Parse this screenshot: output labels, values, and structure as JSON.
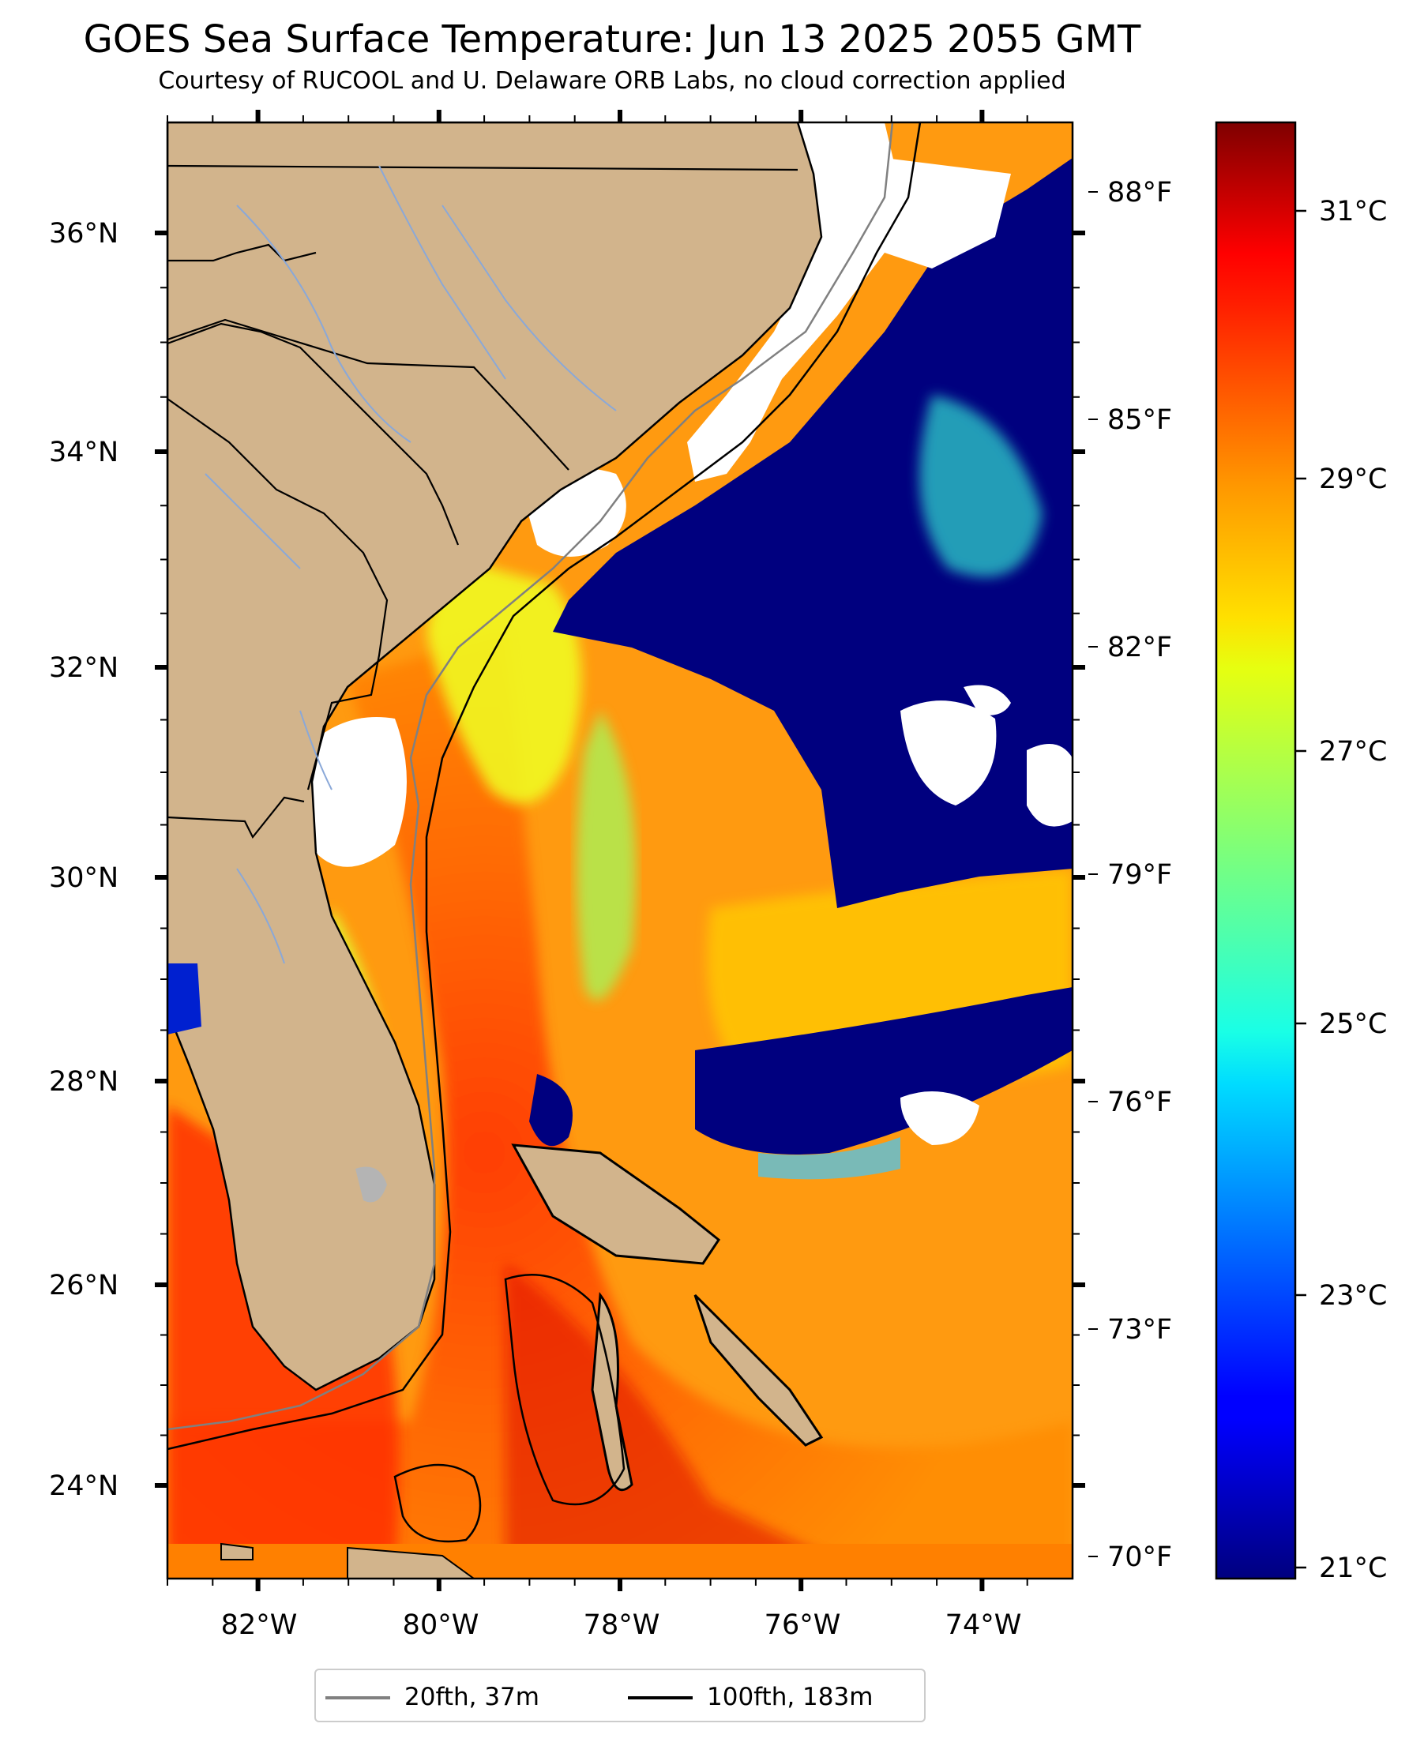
{
  "title": "GOES Sea Surface Temperature: Jun 13 2025 2055 GMT",
  "subtitle": "Courtesy of RUCOOL and U. Delaware ORB Labs, no cloud correction applied",
  "map": {
    "extent": {
      "lon": [
        -83,
        -73
      ],
      "lat": [
        23.1,
        37
      ]
    },
    "land_color": "#d2b48c",
    "cloud_color": "#ffffff",
    "lat_ticks": [
      {
        "label": "36°N"
      },
      {
        "label": "34°N"
      },
      {
        "label": "32°N"
      },
      {
        "label": "30°N"
      },
      {
        "label": "28°N"
      },
      {
        "label": "26°N"
      },
      {
        "label": "24°N"
      }
    ],
    "lon_ticks": [
      {
        "label": "82°W"
      },
      {
        "label": "80°W"
      },
      {
        "label": "78°W"
      },
      {
        "label": "76°W"
      },
      {
        "label": "74°W"
      }
    ],
    "fahrenheit_ticks": [
      {
        "label": "88°F"
      },
      {
        "label": "85°F"
      },
      {
        "label": "82°F"
      },
      {
        "label": "79°F"
      },
      {
        "label": "76°F"
      },
      {
        "label": "73°F"
      },
      {
        "label": "70°F"
      }
    ]
  },
  "colorbar": {
    "colormap": "jet",
    "range_c": [
      20.8,
      31.8
    ],
    "ticks": [
      {
        "label": "31°C"
      },
      {
        "label": "29°C"
      },
      {
        "label": "27°C"
      },
      {
        "label": "25°C"
      },
      {
        "label": "23°C"
      },
      {
        "label": "21°C"
      }
    ]
  },
  "legend": [
    {
      "label": "20fth, 37m",
      "color": "#808080"
    },
    {
      "label": "100fth, 183m",
      "color": "#000000"
    }
  ]
}
